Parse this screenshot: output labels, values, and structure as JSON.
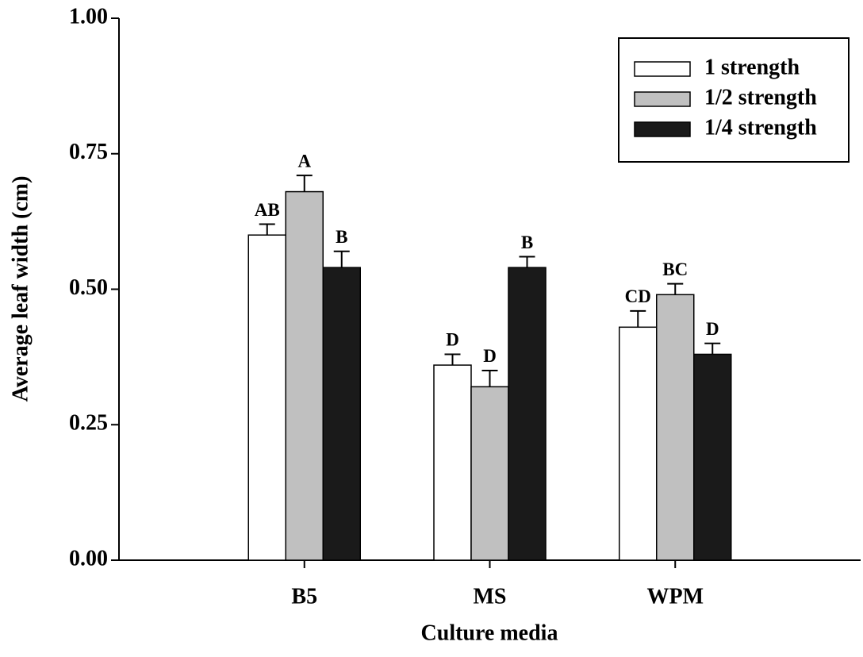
{
  "chart_data": {
    "type": "bar",
    "x_label": "Culture media",
    "y_label": "Average leaf width (cm)",
    "categories": [
      "B5",
      "MS",
      "WPM"
    ],
    "series": [
      {
        "name": "1 strength",
        "color": "#ffffff",
        "values": [
          0.6,
          0.36,
          0.43
        ],
        "errors": [
          0.02,
          0.02,
          0.03
        ],
        "letters": [
          "AB",
          "D",
          "CD"
        ]
      },
      {
        "name": "1/2 strength",
        "color": "#c0c0c0",
        "values": [
          0.68,
          0.32,
          0.49
        ],
        "errors": [
          0.03,
          0.03,
          0.02
        ],
        "letters": [
          "A",
          "D",
          "BC"
        ]
      },
      {
        "name": "1/4 strength",
        "color": "#1a1a1a",
        "values": [
          0.54,
          0.54,
          0.38
        ],
        "errors": [
          0.03,
          0.02,
          0.02
        ],
        "letters": [
          "B",
          "B",
          "D"
        ]
      }
    ],
    "ylim": [
      0,
      1
    ],
    "yticks": [
      {
        "value": 0,
        "label": "0.00"
      },
      {
        "value": 0.25,
        "label": "0.25"
      },
      {
        "value": 0.5,
        "label": "0.50"
      },
      {
        "value": 0.75,
        "label": "0.75"
      },
      {
        "value": 1,
        "label": "1.00"
      }
    ],
    "legend": "upper right"
  }
}
